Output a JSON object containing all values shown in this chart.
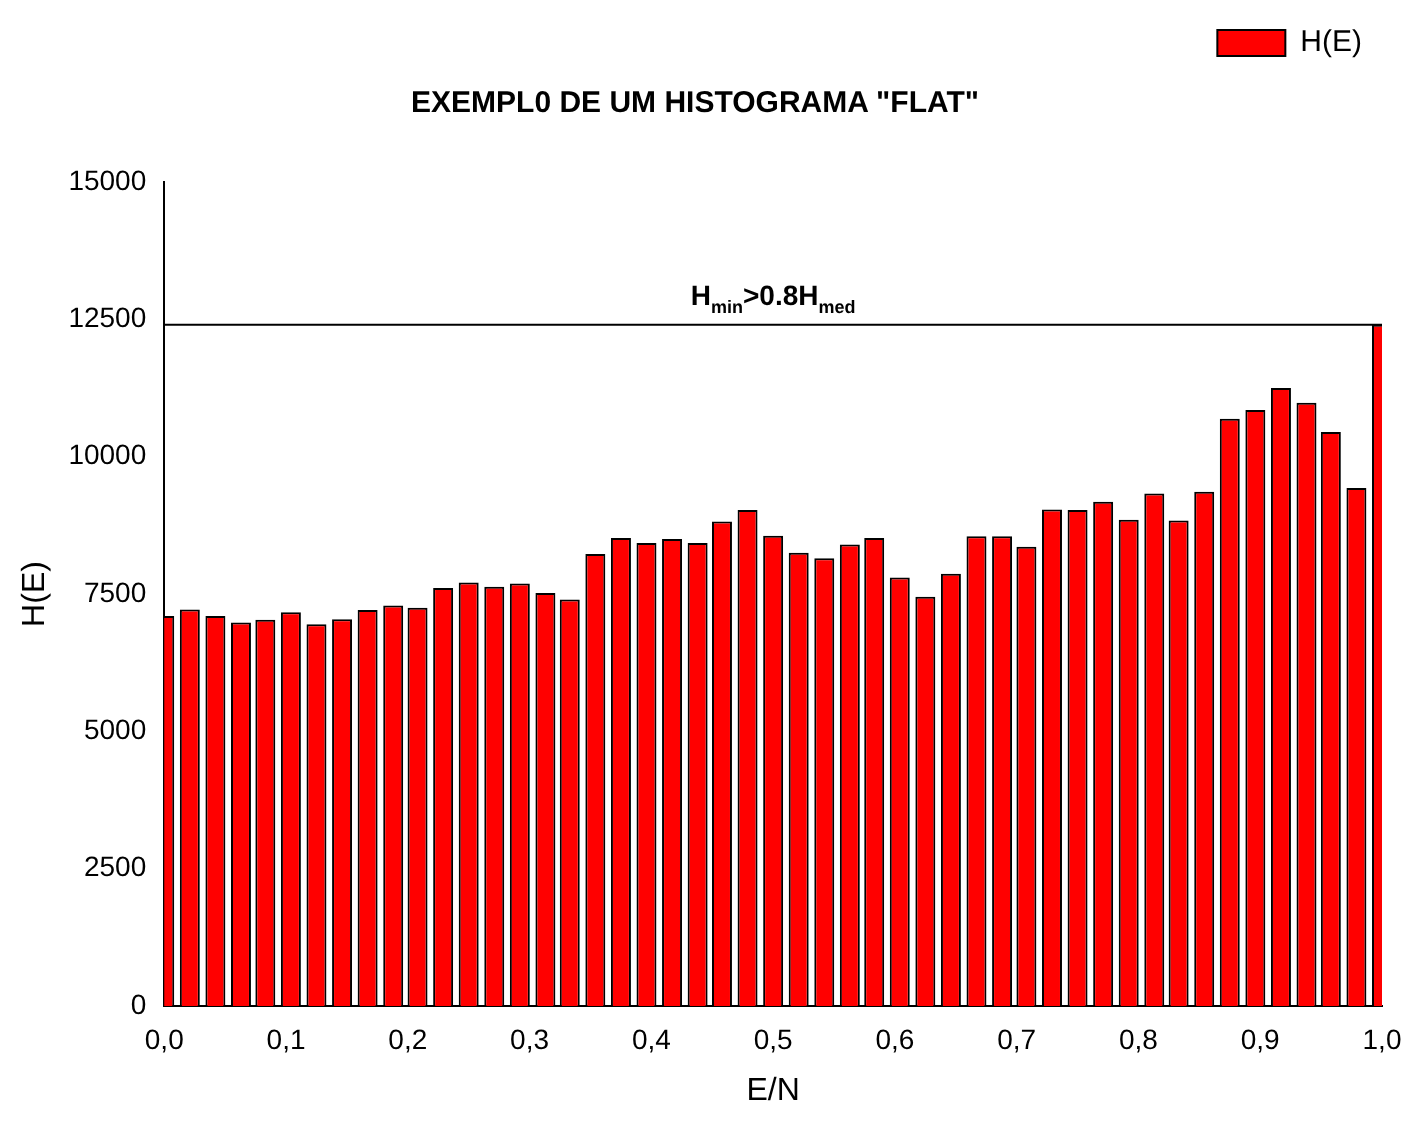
{
  "chart_data": {
    "type": "bar",
    "title": "EXEMPL0 DE UM HISTOGRAMA \"FLAT\"",
    "xlabel": "E/N",
    "ylabel": "H(E)",
    "x": [
      0,
      0.021,
      0.042,
      0.063,
      0.083,
      0.104,
      0.125,
      0.146,
      0.167,
      0.188,
      0.208,
      0.229,
      0.25,
      0.271,
      0.292,
      0.313,
      0.333,
      0.354,
      0.375,
      0.396,
      0.417,
      0.438,
      0.458,
      0.479,
      0.5,
      0.521,
      0.542,
      0.563,
      0.583,
      0.604,
      0.625,
      0.646,
      0.667,
      0.688,
      0.708,
      0.729,
      0.75,
      0.771,
      0.792,
      0.813,
      0.833,
      0.854,
      0.875,
      0.896,
      0.917,
      0.938,
      0.958,
      0.979,
      1.0
    ],
    "series": [
      {
        "name": "H(E)",
        "color": "#ff0000",
        "values": [
          7100,
          7220,
          7100,
          6980,
          7030,
          7170,
          6950,
          7040,
          7210,
          7290,
          7250,
          7610,
          7710,
          7630,
          7690,
          7520,
          7400,
          8230,
          8520,
          8430,
          8500,
          8430,
          8820,
          9030,
          8560,
          8250,
          8150,
          8400,
          8520,
          7800,
          7450,
          7870,
          8550,
          8550,
          8360,
          9040,
          9030,
          9180,
          8850,
          9330,
          8840,
          9360,
          10690,
          10850,
          11250,
          10980,
          10450,
          9430,
          12400
        ]
      }
    ],
    "xlim": [
      0,
      1
    ],
    "xticks": [
      {
        "value": 0,
        "label": "0,0"
      },
      {
        "value": 0.1,
        "label": "0,1"
      },
      {
        "value": 0.2,
        "label": "0,2"
      },
      {
        "value": 0.3,
        "label": "0,3"
      },
      {
        "value": 0.4,
        "label": "0,4"
      },
      {
        "value": 0.5,
        "label": "0,5"
      },
      {
        "value": 0.6,
        "label": "0,6"
      },
      {
        "value": 0.7,
        "label": "0,7"
      },
      {
        "value": 0.8,
        "label": "0,8"
      },
      {
        "value": 0.9,
        "label": "0,9"
      },
      {
        "value": 1,
        "label": "1,0"
      }
    ],
    "ylim": [
      0,
      15000
    ],
    "yticks": [
      0,
      2500,
      5000,
      7500,
      10000,
      12500,
      15000
    ],
    "ref_lines": [
      {
        "axis": "y",
        "value": 12400,
        "label": "H$_{min}$>0.8H$_{med}$"
      }
    ],
    "legend": "top right"
  }
}
